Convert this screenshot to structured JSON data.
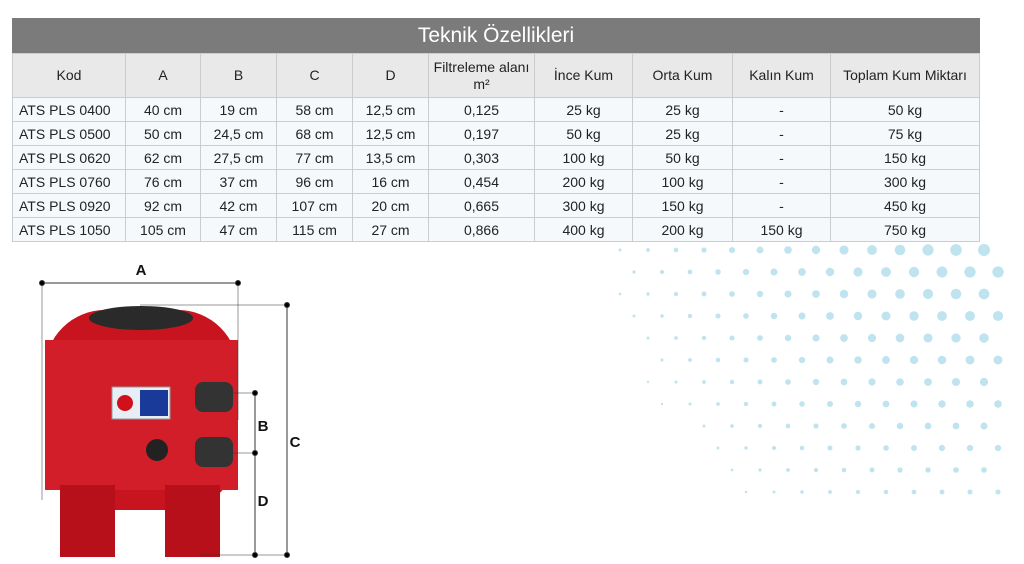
{
  "table": {
    "title": "Teknik Özellikleri",
    "header": [
      "Kod",
      "A",
      "B",
      "C",
      "D",
      "Filtreleme alanı m²",
      "İnce Kum",
      "Orta Kum",
      "Kalın Kum",
      "Toplam Kum Miktarı"
    ],
    "rows": [
      [
        "ATS PLS 0400",
        "40 cm",
        "19 cm",
        "58 cm",
        "12,5 cm",
        "0,125",
        "25 kg",
        "25 kg",
        "-",
        "50 kg"
      ],
      [
        "ATS PLS 0500",
        "50 cm",
        "24,5 cm",
        "68 cm",
        "12,5 cm",
        "0,197",
        "50 kg",
        "25 kg",
        "-",
        "75 kg"
      ],
      [
        "ATS PLS 0620",
        "62 cm",
        "27,5 cm",
        "77 cm",
        "13,5 cm",
        "0,303",
        "100 kg",
        "50 kg",
        "-",
        "150 kg"
      ],
      [
        "ATS PLS 0760",
        "76 cm",
        "37 cm",
        "96 cm",
        "16 cm",
        "0,454",
        "200 kg",
        "100 kg",
        "-",
        "300 kg"
      ],
      [
        "ATS PLS 0920",
        "92 cm",
        "42 cm",
        "107 cm",
        "20 cm",
        "0,665",
        "300 kg",
        "150 kg",
        "-",
        "450 kg"
      ],
      [
        "ATS PLS 1050",
        "105 cm",
        "47 cm",
        "115 cm",
        "27 cm",
        "0,866",
        "400 kg",
        "200 kg",
        "150 kg",
        "750 kg"
      ]
    ]
  },
  "diagram": {
    "labels": {
      "a": "A",
      "b": "B",
      "c": "C",
      "d": "D"
    }
  }
}
